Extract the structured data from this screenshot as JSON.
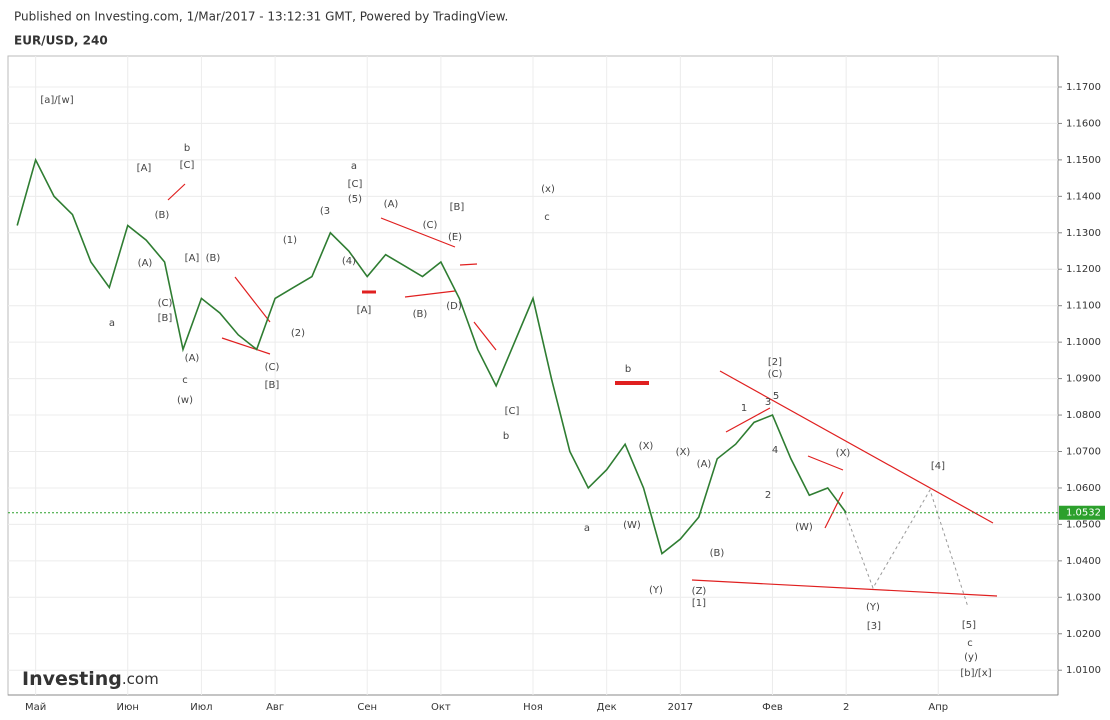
{
  "header": {
    "published": "Published on Investing.com, 1/Mar/2017 - 13:12:31 GMT, Powered by TradingView.",
    "symbol": "EUR/USD, 240"
  },
  "logo": {
    "brand": "Investing",
    "suffix": ".com"
  },
  "chart_data": {
    "type": "line",
    "categories": [
      null,
      "Май",
      null,
      null,
      null,
      null,
      "Июн",
      null,
      null,
      null,
      "Июл",
      null,
      null,
      null,
      "Авг",
      null,
      null,
      null,
      null,
      "Сен",
      null,
      null,
      null,
      "Окт",
      null,
      null,
      null,
      null,
      "Ноя",
      null,
      null,
      null,
      "Дек",
      null,
      null,
      null,
      "2017",
      null,
      null,
      null,
      null,
      "Фев",
      null,
      null,
      null,
      "2",
      null,
      null,
      null,
      null,
      "Апр",
      null,
      null,
      null,
      null,
      null,
      null
    ],
    "series": [
      {
        "name": "EUR/USD",
        "color": "#2f7d32",
        "values": [
          1.132,
          1.15,
          1.14,
          1.135,
          1.122,
          1.115,
          1.132,
          1.128,
          1.122,
          1.098,
          1.112,
          1.108,
          1.102,
          1.098,
          1.112,
          1.115,
          1.118,
          1.13,
          1.125,
          1.118,
          1.124,
          1.121,
          1.118,
          1.122,
          1.112,
          1.098,
          1.088,
          1.1,
          1.112,
          1.09,
          1.07,
          1.06,
          1.065,
          1.072,
          1.06,
          1.042,
          1.046,
          1.052,
          1.068,
          1.072,
          1.078,
          1.08,
          1.068,
          1.058,
          1.06,
          1.0532,
          null,
          null,
          null,
          null,
          null,
          null,
          null,
          null,
          null,
          null,
          null
        ]
      }
    ],
    "last_price": 1.0532,
    "ylim": [
      1.0032,
      1.1785
    ],
    "yticks": [
      {
        "value": 1.01,
        "label": "1.0100"
      },
      {
        "value": 1.02,
        "label": "1.0200"
      },
      {
        "value": 1.03,
        "label": "1.0300"
      },
      {
        "value": 1.04,
        "label": "1.0400"
      },
      {
        "value": 1.05,
        "label": "1.0500"
      },
      {
        "value": 1.06,
        "label": "1.0600"
      },
      {
        "value": 1.07,
        "label": "1.0700"
      },
      {
        "value": 1.08,
        "label": "1.0800"
      },
      {
        "value": 1.09,
        "label": "1.0900"
      },
      {
        "value": 1.1,
        "label": "1.1000"
      },
      {
        "value": 1.11,
        "label": "1.1100"
      },
      {
        "value": 1.12,
        "label": "1.1200"
      },
      {
        "value": 1.13,
        "label": "1.1300"
      },
      {
        "value": 1.14,
        "label": "1.1400"
      },
      {
        "value": 1.15,
        "label": "1.1500"
      },
      {
        "value": 1.16,
        "label": "1.1600"
      },
      {
        "value": 1.17,
        "label": "1.1700"
      }
    ],
    "grid": true,
    "annotations": [
      "[a]/[w]",
      "a",
      "[A]",
      "(B)",
      "(A)",
      "(C)",
      "[B]",
      "b",
      "[C]",
      "[A]",
      "(B)",
      "(A)",
      "c",
      "(w)",
      "(C)",
      "[B]",
      "(2)",
      "(1)",
      "(3",
      "(5)",
      "a",
      "[C]",
      "(4)",
      "[A]",
      "(A)",
      "(C)",
      "[B]",
      "(E)",
      "(B)",
      "(D)",
      "(x)",
      "c",
      "[C]",
      "b",
      "b",
      "a",
      "(X)",
      "(W)",
      "(Y)",
      "(X)",
      "(A)",
      "(B)",
      "(Z)",
      "[1]",
      "1",
      "[2]",
      "(C)",
      "3",
      "5",
      "4",
      "2",
      "(W)",
      "(X)",
      "[4]",
      "(Y)",
      "[3]",
      "[5]",
      "c",
      "(y)",
      "[b]/[x]"
    ]
  }
}
